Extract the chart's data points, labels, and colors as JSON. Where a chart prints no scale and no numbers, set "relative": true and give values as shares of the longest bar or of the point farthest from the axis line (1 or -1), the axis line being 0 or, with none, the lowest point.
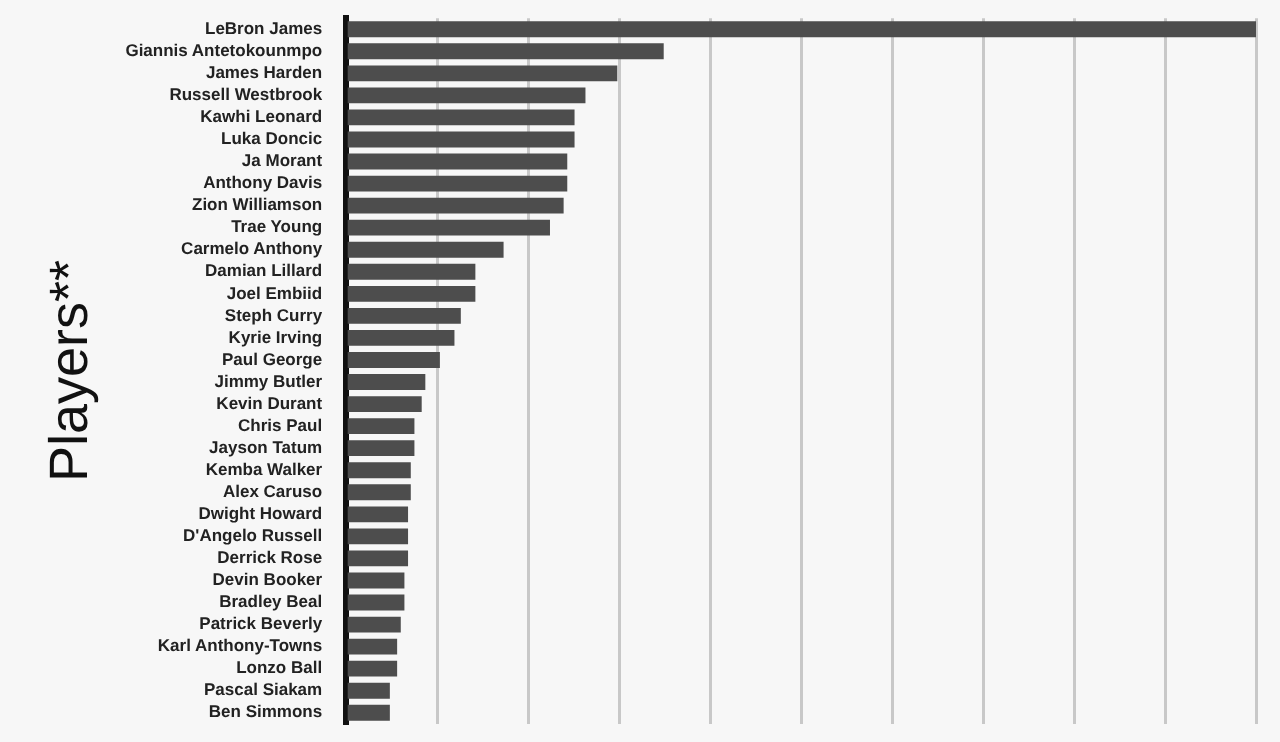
{
  "chart_data": {
    "type": "bar",
    "orientation": "horizontal",
    "relative": true,
    "ylabel": "Players**",
    "grid": "x",
    "color": "#4d4d4d",
    "categories": [
      "LeBron James",
      "Giannis Antetokounmpo",
      "James Harden",
      "Russell Westbrook",
      "Kawhi Leonard",
      "Luka Doncic",
      "Ja Morant",
      "Anthony Davis",
      "Zion Williamson",
      "Trae Young",
      "Carmelo Anthony",
      "Damian Lillard",
      "Joel Embiid",
      "Steph Curry",
      "Kyrie Irving",
      "Paul George",
      "Jimmy Butler",
      "Kevin Durant",
      "Chris Paul",
      "Jayson Tatum",
      "Kemba Walker",
      "Alex Caruso",
      "Dwight Howard",
      "D'Angelo Russell",
      "Derrick Rose",
      "Devin Booker",
      "Bradley Beal",
      "Patrick Beverly",
      "Karl Anthony-Towns",
      "Lonzo Ball",
      "Pascal Siakam",
      "Ben Simmons"
    ],
    "values": [
      1,
      0.349,
      0.298,
      0.263,
      0.251,
      0.251,
      0.243,
      0.243,
      0.239,
      0.224,
      0.173,
      0.142,
      0.142,
      0.126,
      0.119,
      0.103,
      0.087,
      0.083,
      0.075,
      0.075,
      0.071,
      0.071,
      0.068,
      0.068,
      0.068,
      0.064,
      0.064,
      0.06,
      0.056,
      0.056,
      0.048,
      0.048
    ]
  }
}
